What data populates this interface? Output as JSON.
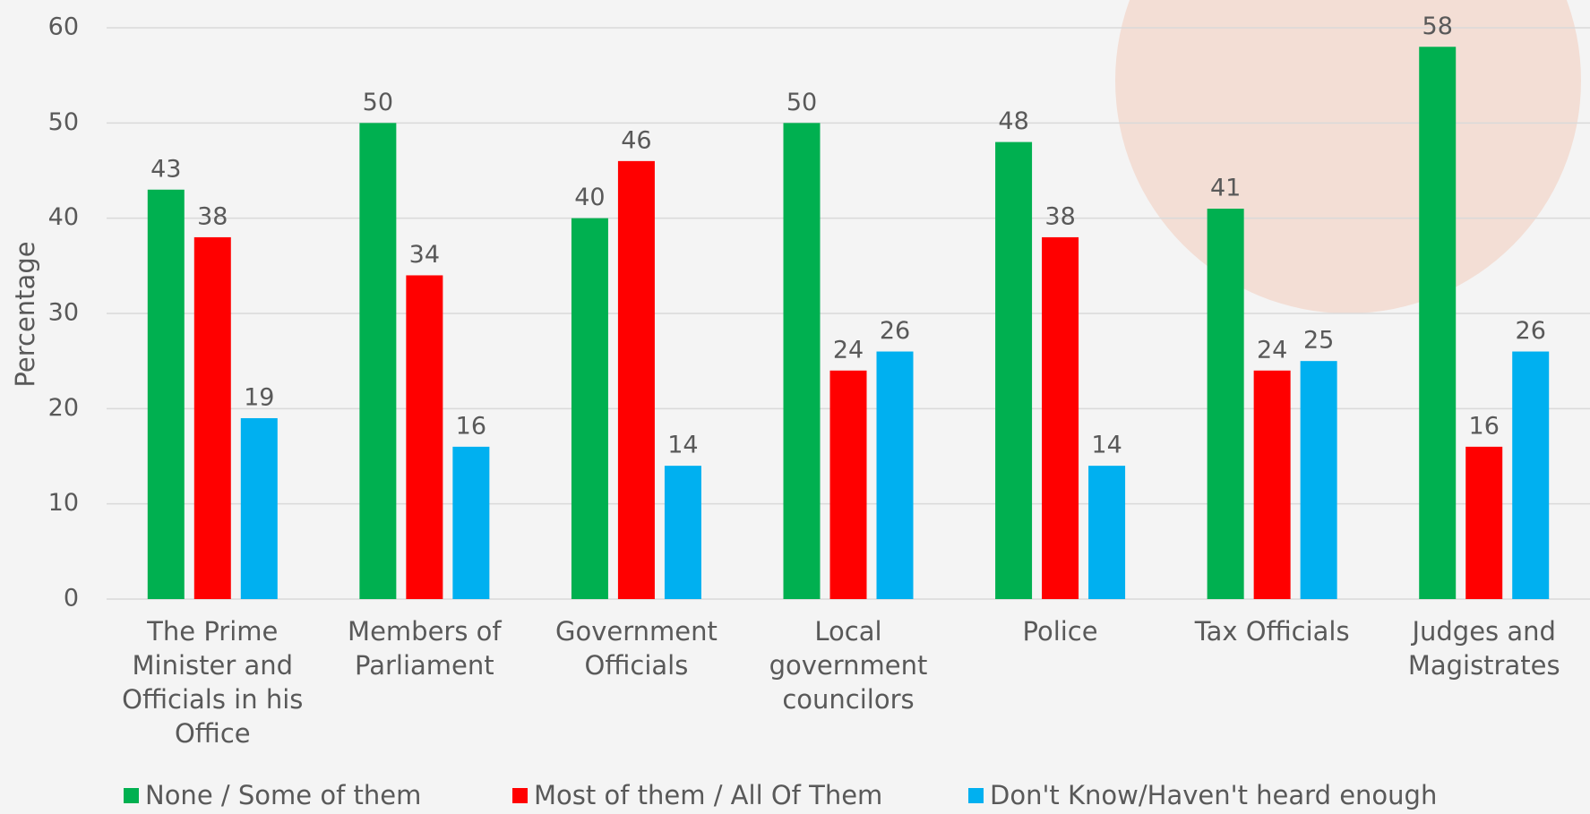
{
  "chart_data": {
    "type": "bar",
    "y_label": "Percentage",
    "categories": [
      "The Prime Minister and Officials in his Office",
      "Members of Parliament",
      "Government Officials",
      "Local government councilors",
      "Police",
      "Tax Officials",
      "Judges and Magistrates"
    ],
    "series": [
      {
        "name": "None / Some of them",
        "color": "#00b050",
        "values": [
          43,
          50,
          40,
          50,
          48,
          41,
          58
        ]
      },
      {
        "name": "Most of them / All Of Them",
        "color": "#ff0000",
        "values": [
          38,
          34,
          46,
          24,
          38,
          24,
          16
        ]
      },
      {
        "name": "Don't Know/Haven't heard enough",
        "color": "#00b0f0",
        "values": [
          19,
          16,
          14,
          26,
          14,
          25,
          26
        ]
      }
    ],
    "ylim": [
      0,
      60
    ],
    "yticks": [
      0,
      10,
      20,
      30,
      40,
      50,
      60
    ],
    "grid": true
  }
}
